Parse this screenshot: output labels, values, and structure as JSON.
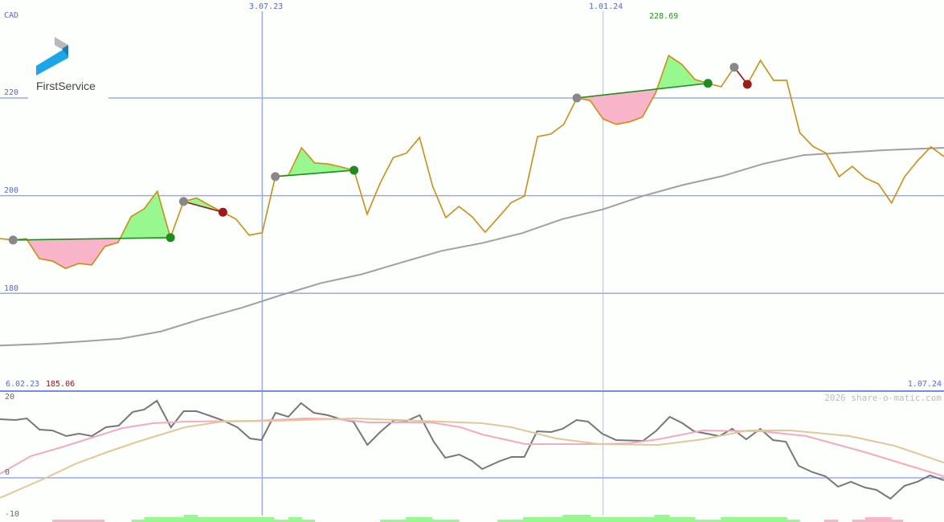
{
  "chart_data": [
    {
      "type": "line",
      "panel": "price",
      "currency": "CAD",
      "yticks": [
        220,
        200,
        180
      ],
      "ylim": [
        166,
        234
      ],
      "x_ticks": [
        {
          "index": 20,
          "label": "3.07.23"
        },
        {
          "index": 46,
          "label": "1.01.24"
        }
      ],
      "start_label": "6.02.23",
      "end_label": "1.07.24",
      "min_label": "185.06",
      "max_label": "228.69",
      "max_index": 51,
      "price": [
        191.2,
        190.9,
        191.2,
        187.1,
        186.6,
        185.1,
        186.1,
        185.8,
        189.6,
        190.4,
        195.7,
        197.3,
        200.9,
        191.4,
        198.8,
        199.5,
        198.0,
        196.6,
        195.2,
        191.9,
        192.4,
        203.9,
        204.2,
        209.8,
        206.7,
        206.5,
        205.9,
        205.2,
        196.2,
        202.6,
        207.8,
        208.7,
        211.9,
        201.9,
        195.5,
        197.8,
        195.7,
        192.5,
        195.5,
        198.6,
        199.9,
        212.1,
        212.6,
        214.6,
        220.0,
        219.5,
        215.7,
        214.6,
        215.1,
        216.1,
        221.0,
        228.69,
        226.9,
        223.8,
        223.0,
        222.3,
        226.3,
        222.8,
        227.7,
        223.6,
        223.6,
        212.9,
        210.1,
        208.7,
        203.9,
        206.0,
        203.6,
        202.4,
        198.5,
        203.9,
        207.2,
        210.0,
        208.0
      ],
      "moving_average": [
        [
          0,
          169.3
        ],
        [
          3.1,
          169.6
        ],
        [
          6.1,
          170.1
        ],
        [
          9.2,
          170.7
        ],
        [
          12.3,
          172.2
        ],
        [
          15.3,
          174.7
        ],
        [
          18.4,
          177.0
        ],
        [
          21.4,
          179.6
        ],
        [
          24.5,
          182.1
        ],
        [
          27.6,
          183.9
        ],
        [
          30.6,
          186.3
        ],
        [
          33.7,
          188.7
        ],
        [
          36.8,
          190.3
        ],
        [
          39.8,
          192.3
        ],
        [
          42.9,
          195.2
        ],
        [
          46,
          197.2
        ],
        [
          49,
          199.9
        ],
        [
          52.1,
          202.2
        ],
        [
          55.1,
          204.0
        ],
        [
          58.2,
          206.5
        ],
        [
          61.3,
          208.3
        ],
        [
          64.3,
          208.8
        ],
        [
          67.4,
          209.3
        ],
        [
          72,
          209.8
        ]
      ],
      "trades": [
        {
          "entry": 1,
          "exit": 13,
          "result": "gain"
        },
        {
          "entry": 14,
          "exit": 17,
          "result": "loss"
        },
        {
          "entry": 21,
          "exit": 27,
          "result": "gain"
        },
        {
          "entry": 44,
          "exit": 54,
          "result": "gain"
        },
        {
          "entry": 56,
          "exit": 57,
          "result": "loss"
        }
      ]
    },
    {
      "type": "line",
      "panel": "indicator",
      "yticks": [
        "20",
        "0",
        "-10"
      ],
      "ylim": [
        -10,
        21
      ],
      "series": [
        {
          "color": "#777777",
          "points": [
            [
              0,
              14.6
            ],
            [
              1.2,
              14.4
            ],
            [
              2.1,
              14.8
            ],
            [
              3.1,
              12
            ],
            [
              4.1,
              11.8
            ],
            [
              5.2,
              10.4
            ],
            [
              6.2,
              11
            ],
            [
              7.2,
              10.4
            ],
            [
              8.3,
              12.6
            ],
            [
              9.3,
              13
            ],
            [
              10.4,
              16.4
            ],
            [
              11.3,
              17
            ],
            [
              12.3,
              19.2
            ],
            [
              13.4,
              12.6
            ],
            [
              14.4,
              16.6
            ],
            [
              15.4,
              16.6
            ],
            [
              16.5,
              15.4
            ],
            [
              17.4,
              14.4
            ],
            [
              18.6,
              12.6
            ],
            [
              19.6,
              9.8
            ],
            [
              20.5,
              9.4
            ],
            [
              21.6,
              16.2
            ],
            [
              22.6,
              15.2
            ],
            [
              23.6,
              18.6
            ],
            [
              24.6,
              16.2
            ],
            [
              25.7,
              15.6
            ],
            [
              26.7,
              14.6
            ],
            [
              27.7,
              14
            ],
            [
              28.8,
              8.2
            ],
            [
              29.8,
              11.4
            ],
            [
              30.9,
              14.4
            ],
            [
              31.9,
              14.2
            ],
            [
              32.9,
              15.6
            ],
            [
              34,
              9
            ],
            [
              34.9,
              5
            ],
            [
              36,
              5.8
            ],
            [
              37,
              4.2
            ],
            [
              37.8,
              2.2
            ],
            [
              39.2,
              4.2
            ],
            [
              40.1,
              5.2
            ],
            [
              41.1,
              5.2
            ],
            [
              42.1,
              11.6
            ],
            [
              43.2,
              11.4
            ],
            [
              44.1,
              12.2
            ],
            [
              45.2,
              14.4
            ],
            [
              46.1,
              14
            ],
            [
              47.2,
              11
            ],
            [
              48.3,
              9.4
            ],
            [
              50.4,
              9.2
            ],
            [
              51.4,
              11.6
            ],
            [
              52.5,
              15.2
            ],
            [
              53.5,
              13.6
            ],
            [
              54.4,
              11.6
            ],
            [
              56.4,
              10.4
            ],
            [
              57.4,
              12.2
            ],
            [
              58.5,
              9.6
            ],
            [
              59.6,
              12.2
            ],
            [
              60.6,
              9.4
            ],
            [
              61.6,
              9
            ],
            [
              62.6,
              3
            ],
            [
              63.7,
              1.4
            ],
            [
              64.7,
              0.4
            ],
            [
              65.7,
              -2.2
            ],
            [
              66.7,
              -1
            ],
            [
              67.8,
              -2.4
            ],
            [
              68.7,
              -3
            ],
            [
              69.8,
              -5.2
            ],
            [
              70.9,
              -2
            ],
            [
              71.9,
              -1
            ],
            [
              72.9,
              0.6
            ],
            [
              74,
              -0.6
            ]
          ]
        },
        {
          "color": "#f4aac0",
          "points": [
            [
              0,
              1
            ],
            [
              2.4,
              5.4
            ],
            [
              4.8,
              7.6
            ],
            [
              7.2,
              10
            ],
            [
              9.6,
              12.4
            ],
            [
              12,
              13.6
            ],
            [
              14.5,
              14
            ],
            [
              20,
              14.2
            ],
            [
              24.1,
              14.8
            ],
            [
              26.5,
              14.6
            ],
            [
              28.9,
              13.8
            ],
            [
              33.8,
              13.8
            ],
            [
              36.1,
              12.6
            ],
            [
              37.8,
              10.8
            ],
            [
              41.2,
              8.4
            ],
            [
              47,
              8.4
            ],
            [
              49.3,
              8.6
            ],
            [
              51.6,
              9.6
            ],
            [
              55.1,
              11.8
            ],
            [
              59.7,
              11.6
            ],
            [
              63.2,
              10.4
            ],
            [
              67.8,
              6.4
            ],
            [
              71.3,
              3
            ],
            [
              74,
              0.4
            ]
          ]
        },
        {
          "color": "#e2c898",
          "points": [
            [
              0,
              -5
            ],
            [
              3.6,
              0
            ],
            [
              6,
              3.6
            ],
            [
              8.4,
              6.4
            ],
            [
              10.8,
              9
            ],
            [
              14.5,
              12.6
            ],
            [
              17.4,
              14
            ],
            [
              21.7,
              14.2
            ],
            [
              27.7,
              14.8
            ],
            [
              31.4,
              14.4
            ],
            [
              37.8,
              13.6
            ],
            [
              40.1,
              12.6
            ],
            [
              43.6,
              9.8
            ],
            [
              47,
              8.4
            ],
            [
              51.6,
              8.2
            ],
            [
              55.1,
              9.6
            ],
            [
              58.6,
              11.8
            ],
            [
              62,
              11.8
            ],
            [
              66.6,
              10.4
            ],
            [
              70.1,
              8
            ],
            [
              74,
              3.8
            ]
          ]
        }
      ],
      "histogram": [
        [
          4.1,
          8.2,
          -1
        ],
        [
          10.3,
          24.7,
          1
        ],
        [
          11.3,
          21.5,
          2
        ],
        [
          14.4,
          15.5,
          3
        ],
        [
          22.6,
          23.7,
          2
        ],
        [
          29.8,
          36,
          1
        ],
        [
          31.8,
          33.9,
          2
        ],
        [
          39,
          62.7,
          1
        ],
        [
          41,
          54.5,
          2
        ],
        [
          44.1,
          46.3,
          3
        ],
        [
          51.3,
          52.5,
          3
        ],
        [
          56.5,
          61.7,
          2
        ],
        [
          64.6,
          65.7,
          -1
        ],
        [
          66.8,
          70.8,
          -1
        ],
        [
          67.8,
          69.9,
          -2
        ]
      ]
    }
  ],
  "logo": {
    "name": "FirstService"
  },
  "watermark": "2026 share-o-matic.com",
  "colors": {
    "price": "#d08c10",
    "ma": "#a0a0a0",
    "grid": "#9aaaf0",
    "gain_fill": "#98f890",
    "loss_fill": "#f8b4c8",
    "gain": "#1e8c1e",
    "loss": "#a01818",
    "entry_dot": "#888888"
  }
}
